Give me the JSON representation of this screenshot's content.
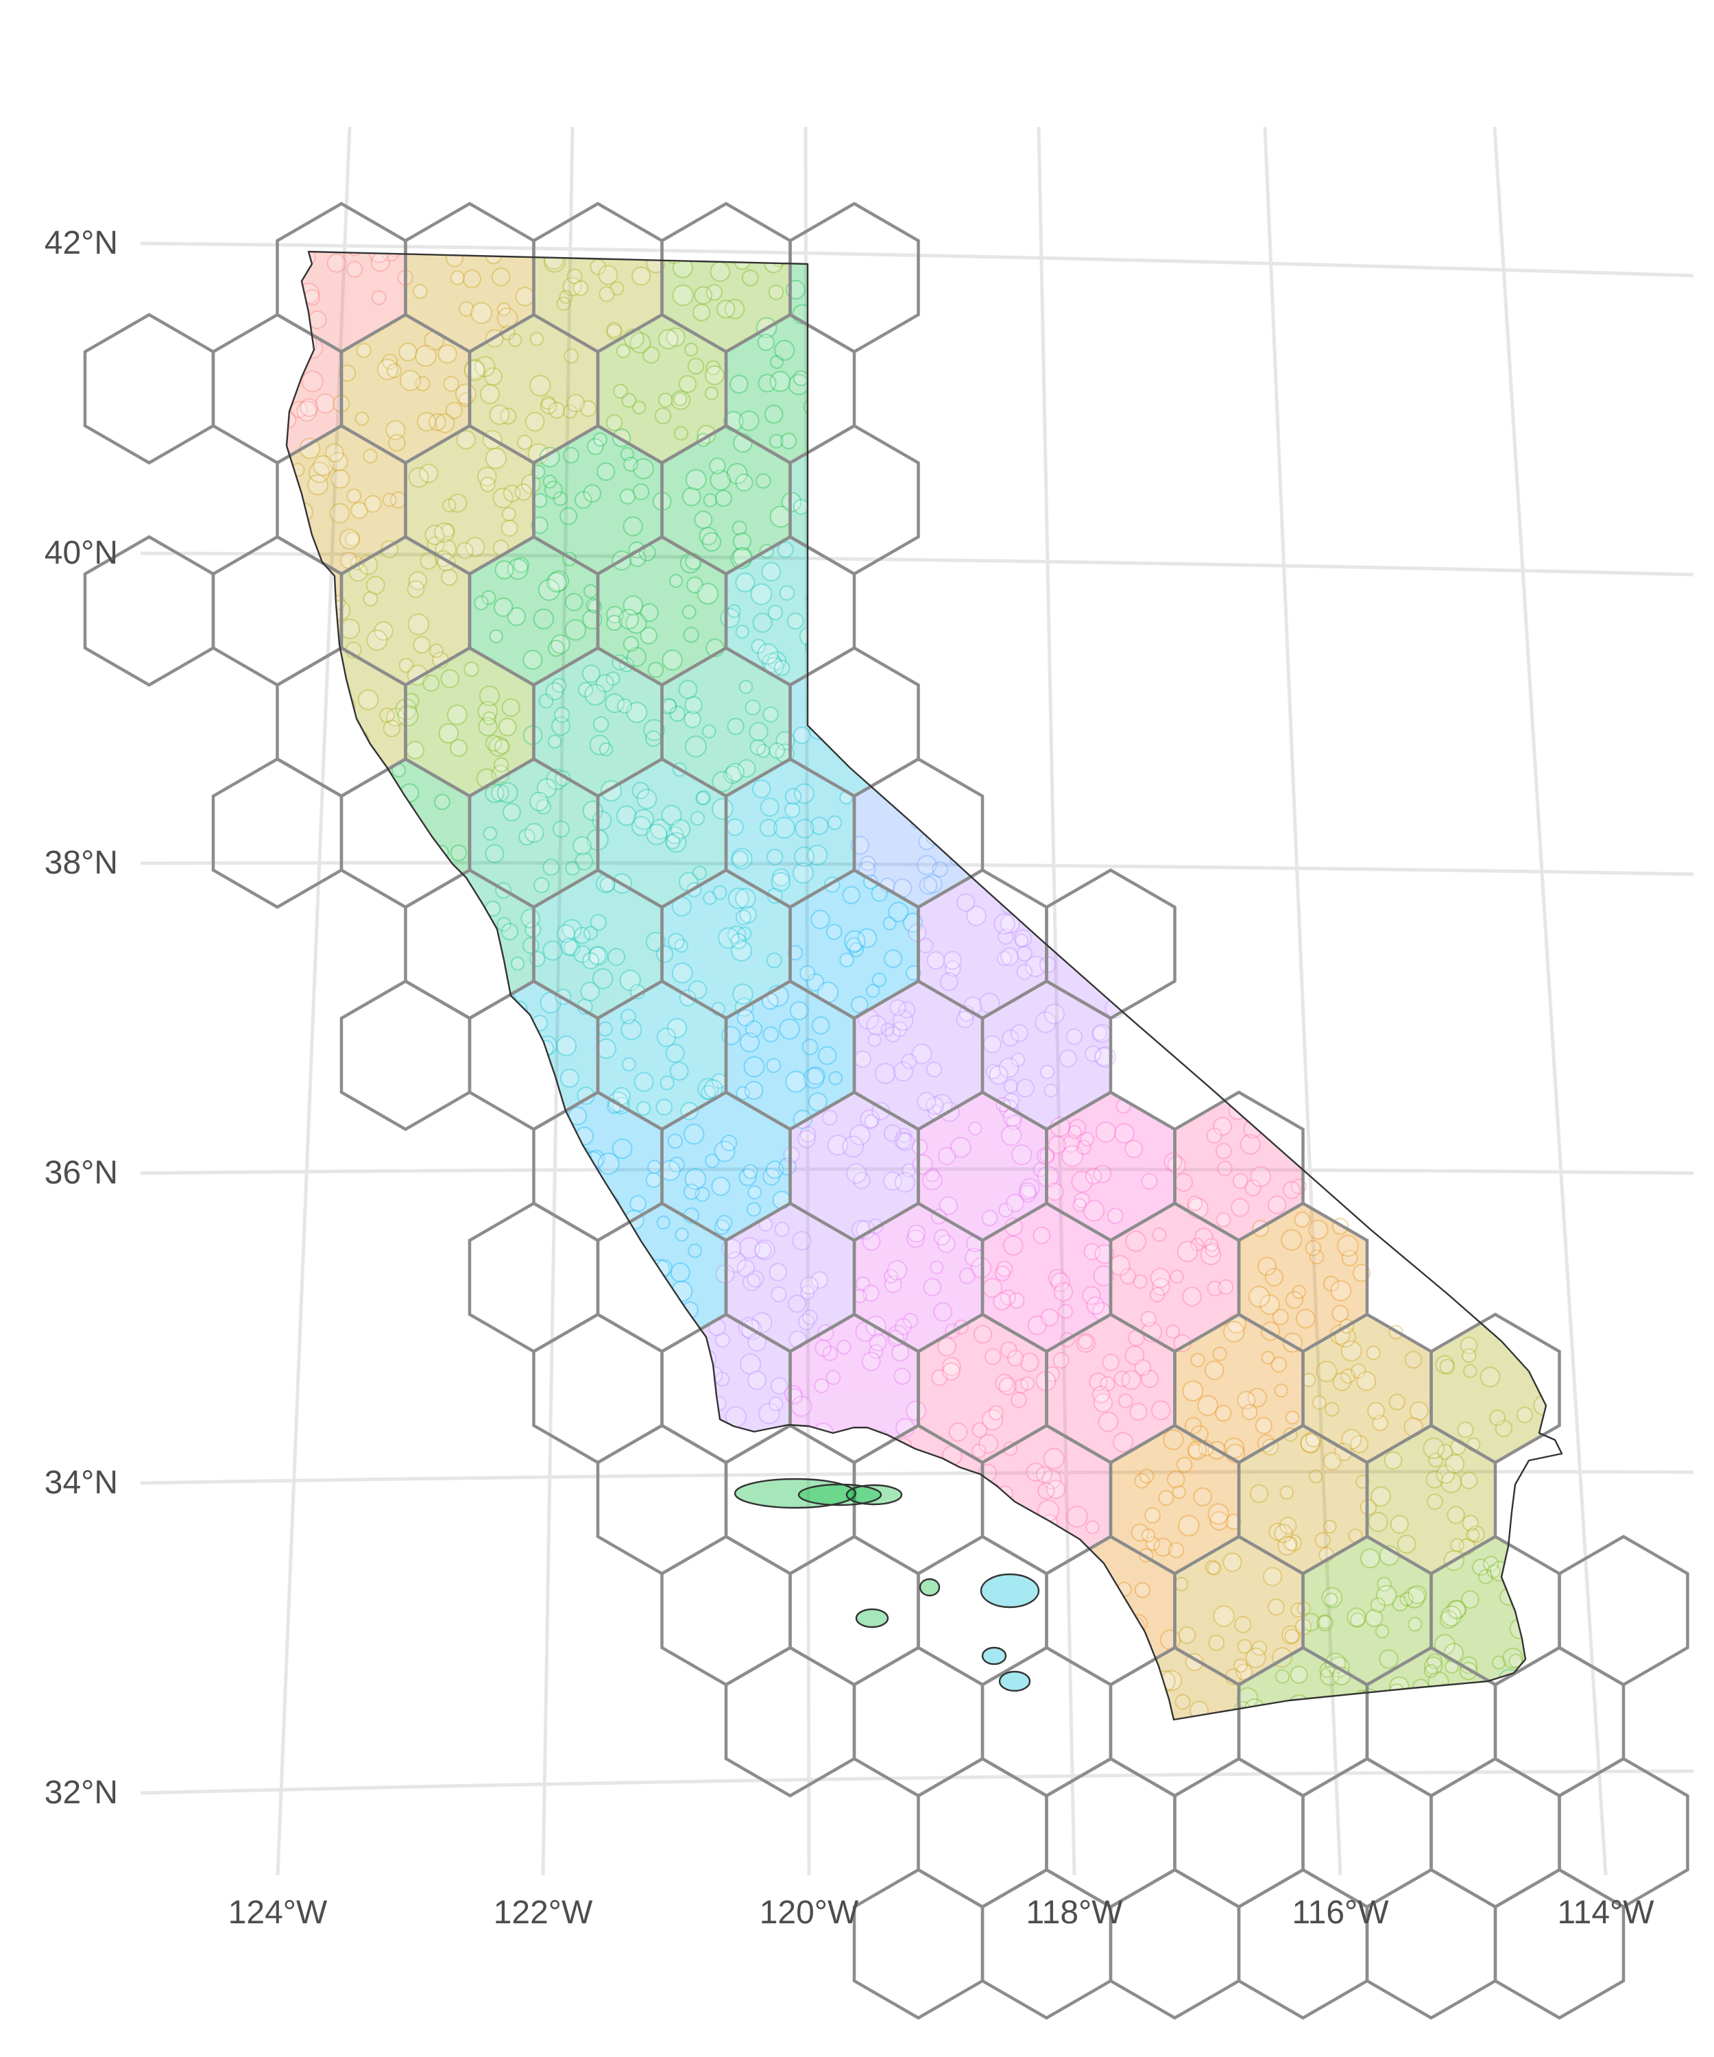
{
  "map": {
    "lat_labels": [
      "42°N",
      "40°N",
      "38°N",
      "36°N",
      "34°N",
      "32°N"
    ],
    "lon_labels": [
      "124°W",
      "122°W",
      "120°W",
      "118°W",
      "116°W",
      "114°W"
    ],
    "colors": {
      "graticule": "#e6e6e6",
      "hex_outline": "#8c8c8c",
      "state_outline": "#333333",
      "palette": [
        "#F8766D",
        "#E58700",
        "#C99800",
        "#A3A500",
        "#6BB100",
        "#00BA38",
        "#00BF7D",
        "#00C0AF",
        "#00BCD8",
        "#00B0F6",
        "#619CFF",
        "#B983FF",
        "#E76BF3",
        "#FD61D1",
        "#FF67A4"
      ]
    }
  }
}
